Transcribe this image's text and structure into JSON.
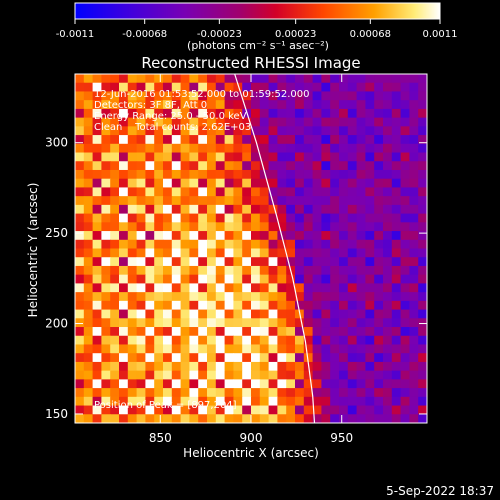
{
  "chart_data": {
    "type": "heatmap",
    "title": "Reconstructed RHESSI Image",
    "xlabel": "Heliocentric X (arcsec)",
    "ylabel": "Heliocentric Y (arcsec)",
    "xlim": [
      803,
      997
    ],
    "ylim": [
      145,
      338
    ],
    "x_ticks": [
      850,
      900,
      950
    ],
    "y_ticks": [
      150,
      200,
      250,
      300
    ],
    "x_tick_labels": [
      "850",
      "900",
      "950"
    ],
    "y_tick_labels": [
      "150",
      "200",
      "250",
      "300"
    ],
    "colorbar": {
      "range": [
        -0.0011,
        0.0011
      ],
      "ticks": [
        -0.0011,
        -0.00068,
        -0.00023,
        0.00023,
        0.00068,
        0.0011
      ],
      "tick_labels": [
        "-0.0011",
        "-0.00068",
        "-0.00023",
        "0.00023",
        "0.00068",
        "0.0011"
      ],
      "label": "(photons cm⁻² s⁻¹ asec⁻²)",
      "colors": [
        "#0000ff",
        "#5a00c8",
        "#8c008c",
        "#c8003c",
        "#ff3c00",
        "#ff9600",
        "#ffe650",
        "#ffffff"
      ]
    },
    "info_lines": [
      "12-Jun-2016 01:53:52.000 to 01:59:52.000",
      "Detectors: 3F 8F, Att 0",
      "Energy Range: 25.0 - 50.0 keV",
      "Clean    Total counts: 2.62E+03"
    ],
    "peak_label": "Position of Peak = [897,204]",
    "peak": [
      897,
      204
    ],
    "limb_points": [
      [
        891,
        338
      ],
      [
        903,
        300
      ],
      [
        914,
        260
      ],
      [
        923,
        225
      ],
      [
        930,
        190
      ],
      [
        934,
        160
      ],
      [
        935,
        145
      ]
    ],
    "image_grid_size": 40
  },
  "footer_timestamp": "5-Sep-2022 18:37"
}
